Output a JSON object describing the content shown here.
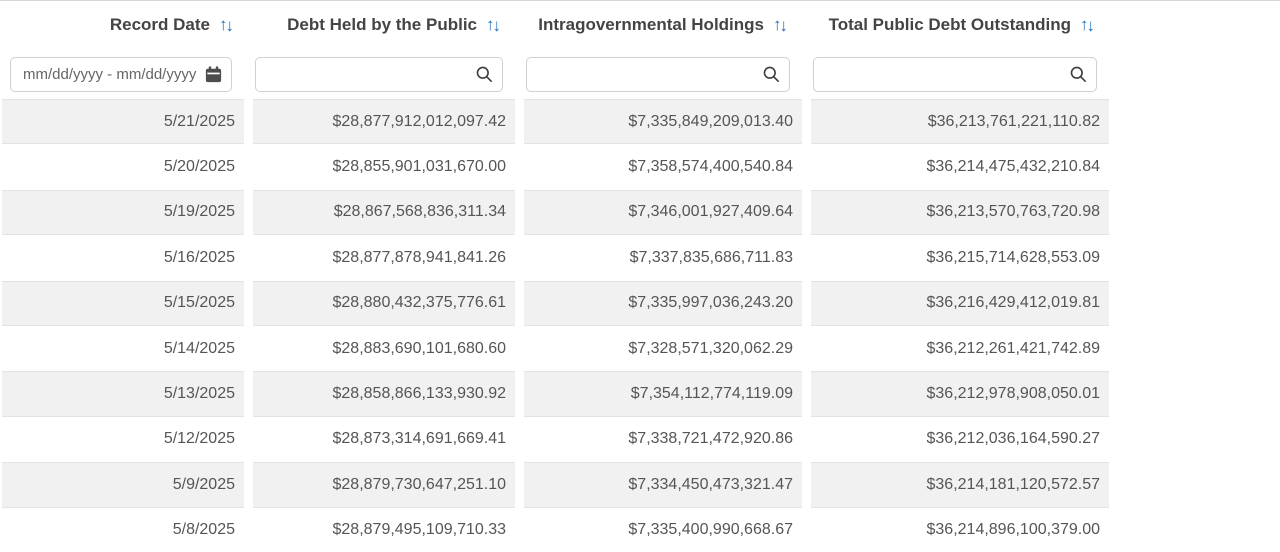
{
  "table": {
    "columns": [
      {
        "label": "Record Date",
        "sort_icon": "sort-arrows-icon",
        "filter_placeholder": "mm/dd/yyyy - mm/dd/yyyy",
        "filter_icon": "calendar-icon",
        "key": "record-date"
      },
      {
        "label": "Debt Held by the Public",
        "sort_icon": "sort-arrows-icon",
        "filter_placeholder": "",
        "filter_icon": "search-icon",
        "key": "debt-held-by-the-public"
      },
      {
        "label": "Intragovernmental Holdings",
        "sort_icon": "sort-arrows-icon",
        "filter_placeholder": "",
        "filter_icon": "search-icon",
        "key": "intragovernmental-holdings"
      },
      {
        "label": "Total Public Debt Outstanding",
        "sort_icon": "sort-arrows-icon",
        "filter_placeholder": "",
        "filter_icon": "search-icon",
        "key": "total-public-debt-outstanding"
      }
    ],
    "filter_values": [
      "",
      "",
      "",
      ""
    ],
    "rows": [
      [
        "5/21/2025",
        "$28,877,912,012,097.42",
        "$7,335,849,209,013.40",
        "$36,213,761,221,110.82"
      ],
      [
        "5/20/2025",
        "$28,855,901,031,670.00",
        "$7,358,574,400,540.84",
        "$36,214,475,432,210.84"
      ],
      [
        "5/19/2025",
        "$28,867,568,836,311.34",
        "$7,346,001,927,409.64",
        "$36,213,570,763,720.98"
      ],
      [
        "5/16/2025",
        "$28,877,878,941,841.26",
        "$7,337,835,686,711.83",
        "$36,215,714,628,553.09"
      ],
      [
        "5/15/2025",
        "$28,880,432,375,776.61",
        "$7,335,997,036,243.20",
        "$36,216,429,412,019.81"
      ],
      [
        "5/14/2025",
        "$28,883,690,101,680.60",
        "$7,328,571,320,062.29",
        "$36,212,261,421,742.89"
      ],
      [
        "5/13/2025",
        "$28,858,866,133,930.92",
        "$7,354,112,774,119.09",
        "$36,212,978,908,050.01"
      ],
      [
        "5/12/2025",
        "$28,873,314,691,669.41",
        "$7,338,721,472,920.86",
        "$36,212,036,164,590.27"
      ],
      [
        "5/9/2025",
        "$28,879,730,647,251.10",
        "$7,334,450,473,321.47",
        "$36,214,181,120,572.57"
      ],
      [
        "5/8/2025",
        "$28,879,495,109,710.33",
        "$7,335,400,990,668.67",
        "$36,214,896,100,379.00"
      ]
    ]
  },
  "colors": {
    "sort_arrow_blue": "#1f6fbf",
    "header_text": "#444444",
    "cell_text": "#555555",
    "row_stripe": "#f1f1f1",
    "row_border": "#e3e3e3",
    "input_border": "#d0d0d0",
    "icon_dark": "#4d4d4d"
  }
}
